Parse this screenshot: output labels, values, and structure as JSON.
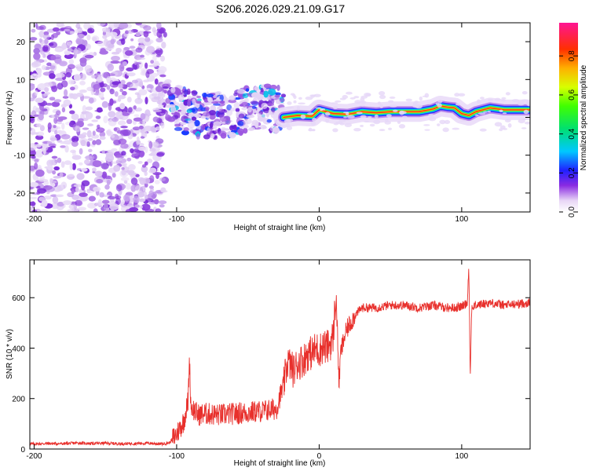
{
  "title": "S206.2026.029.21.09.G17",
  "chart_data": [
    {
      "type": "heatmap",
      "name": "spectrogram",
      "xlabel": "Height of straight line (km)",
      "ylabel": "Frequency (Hz)",
      "xlim": [
        -203,
        148
      ],
      "ylim": [
        -25,
        25
      ],
      "xticks": [
        -200,
        -100,
        0,
        100
      ],
      "yticks": [
        -20,
        -10,
        0,
        10,
        20
      ],
      "noise_region_x": [
        -203,
        -108
      ],
      "transition_region_x": [
        -108,
        -25
      ],
      "ridge": {
        "x": [
          -25,
          -15,
          -5,
          0,
          5,
          10,
          20,
          30,
          40,
          50,
          60,
          70,
          80,
          85,
          90,
          95,
          100,
          105,
          110,
          120,
          130,
          148
        ],
        "y": [
          0,
          0.5,
          0.3,
          2,
          1.5,
          1,
          0.8,
          1.5,
          1.2,
          1.5,
          1.5,
          1.5,
          2.2,
          3,
          2.7,
          2.5,
          1,
          0.5,
          1.5,
          2.5,
          2,
          2
        ]
      },
      "colorbar": {
        "label": "Normalized spectral amplitude",
        "range": [
          0,
          0.97
        ],
        "ticks": [
          "0.0",
          "0.2",
          "0.4",
          "0.6",
          "0.8"
        ]
      }
    },
    {
      "type": "line",
      "name": "snr",
      "xlabel": "Height of straight line (km)",
      "ylabel": "SNR (10 * v/v)",
      "xlim": [
        -203,
        148
      ],
      "ylim": [
        0,
        750
      ],
      "xticks": [
        -200,
        -100,
        0,
        100
      ],
      "yticks": [
        0,
        200,
        400,
        600
      ],
      "color": "#e8302c",
      "series": [
        {
          "name": "SNR",
          "x": [
            -203,
            -190,
            -180,
            -170,
            -160,
            -150,
            -140,
            -130,
            -120,
            -110,
            -105,
            -100,
            -95,
            -92,
            -91,
            -90,
            -85,
            -80,
            -70,
            -60,
            -50,
            -40,
            -30,
            -28,
            -25,
            -22,
            -20,
            -18,
            -15,
            -12,
            -10,
            -8,
            -5,
            -2,
            0,
            3,
            5,
            8,
            10,
            11,
            12,
            13,
            14,
            15,
            18,
            20,
            25,
            30,
            40,
            50,
            60,
            70,
            80,
            90,
            95,
            100,
            104,
            105,
            106,
            107,
            110,
            115,
            120,
            130,
            140,
            148
          ],
          "y": [
            20,
            22,
            21,
            24,
            22,
            23,
            21,
            22,
            23,
            20,
            25,
            60,
            110,
            190,
            360,
            170,
            135,
            140,
            135,
            140,
            145,
            150,
            160,
            200,
            250,
            350,
            330,
            310,
            340,
            350,
            360,
            380,
            380,
            400,
            390,
            410,
            400,
            420,
            450,
            560,
            600,
            420,
            250,
            380,
            450,
            480,
            530,
            560,
            560,
            570,
            570,
            560,
            570,
            560,
            560,
            565,
            580,
            740,
            270,
            560,
            570,
            575,
            580,
            570,
            575,
            580
          ]
        }
      ]
    }
  ]
}
